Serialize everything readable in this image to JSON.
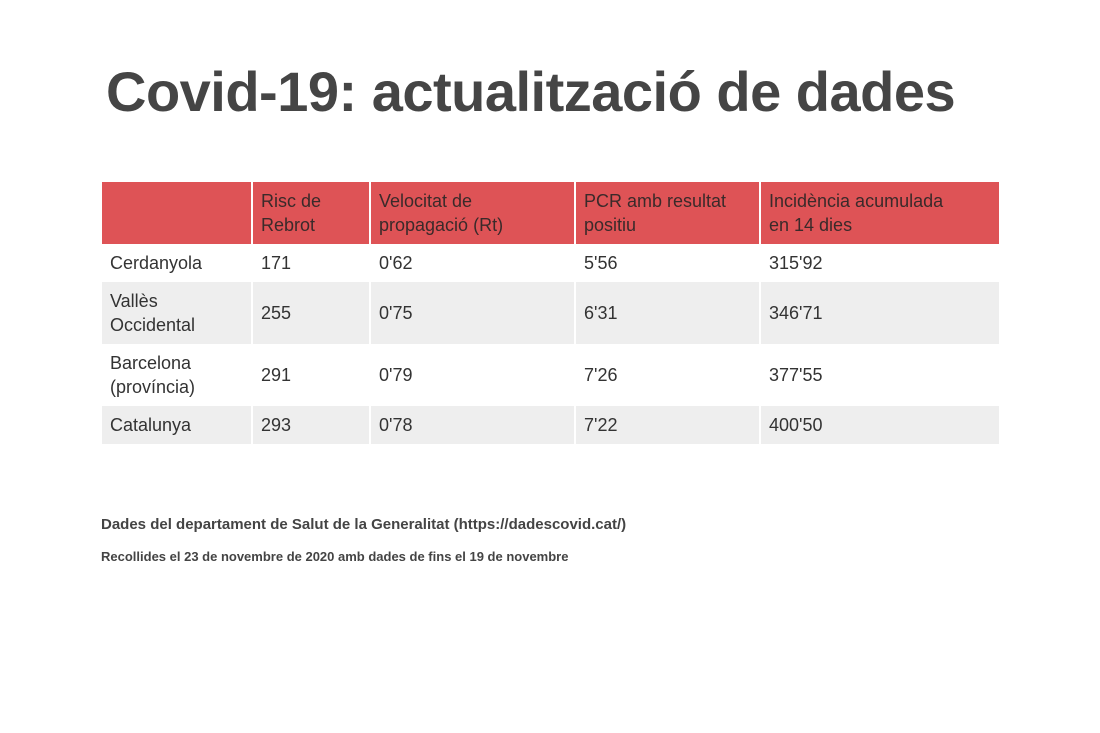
{
  "title": "Covid-19: actualització de dades",
  "table": {
    "headers": [
      "",
      "Risc de Rebrot",
      "Velocitat de propagació (Rt)",
      "PCR amb resultat positiu",
      "Incidència acumulada en 14 dies"
    ],
    "header_lines": [
      [
        ""
      ],
      [
        "Risc de",
        "Rebrot"
      ],
      [
        "Velocitat de",
        "propagació (Rt)"
      ],
      [
        "PCR amb resultat",
        "positiu"
      ],
      [
        "Incidència acumulada",
        "en 14 dies"
      ]
    ],
    "rows": [
      {
        "region_lines": [
          "Cerdanyola"
        ],
        "risc_rebrot": "171",
        "rt": "0'62",
        "pcr": "5'56",
        "ia14": "315'92"
      },
      {
        "region_lines": [
          "Vallès",
          "Occidental"
        ],
        "risc_rebrot": "255",
        "rt": "0'75",
        "pcr": "6'31",
        "ia14": "346'71"
      },
      {
        "region_lines": [
          "Barcelona",
          "(província)"
        ],
        "risc_rebrot": "291",
        "rt": "0'79",
        "pcr": "7'26",
        "ia14": "377'55"
      },
      {
        "region_lines": [
          "Catalunya"
        ],
        "risc_rebrot": "293",
        "rt": "0'78",
        "pcr": "7'22",
        "ia14": "400'50"
      }
    ]
  },
  "source_note": "Dades del departament de Salut de la Generalitat (https://dadescovid.cat/)",
  "collected_note": "Recollides el 23 de novembre de 2020 amb dades de fins el 19 de novembre",
  "colors": {
    "header_background": "#de5356",
    "stripe_background": "#eeeeee",
    "title_color": "#454545"
  }
}
